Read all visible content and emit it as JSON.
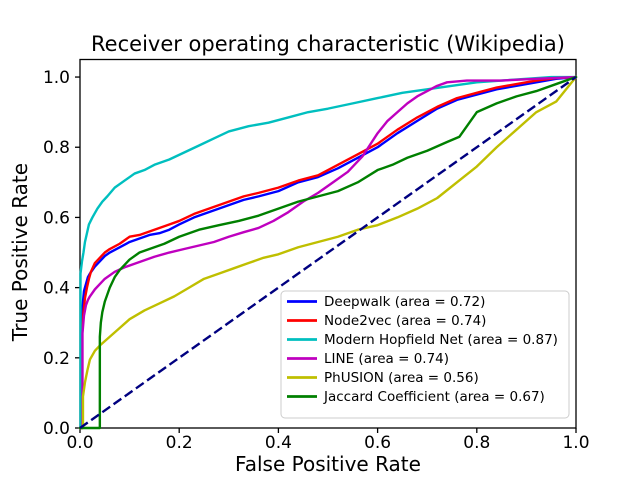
{
  "chart_data": {
    "type": "line",
    "title": "Receiver operating characteristic (Wikipedia)",
    "xlabel": "False Positive Rate",
    "ylabel": "True Positive Rate",
    "xlim": [
      0.0,
      1.0
    ],
    "ylim": [
      0.0,
      1.05
    ],
    "grid": false,
    "legend_position": "lower right",
    "x_ticks": {
      "values": [
        0.0,
        0.2,
        0.4,
        0.6,
        0.8,
        1.0
      ],
      "labels": [
        "0.0",
        "0.2",
        "0.4",
        "0.6",
        "0.8",
        "1.0"
      ]
    },
    "y_ticks": {
      "values": [
        0.0,
        0.2,
        0.4,
        0.6,
        0.8,
        1.0
      ],
      "labels": [
        "0.0",
        "0.2",
        "0.4",
        "0.6",
        "0.8",
        "1.0"
      ]
    },
    "series": [
      {
        "name": "deepwalk",
        "label": "Deepwalk (area = 0.72)",
        "auc": 0.72,
        "color": "#0000ff",
        "x": [
          0,
          0.003,
          0.003,
          0.006,
          0.008,
          0.012,
          0.016,
          0.02,
          0.03,
          0.04,
          0.05,
          0.06,
          0.08,
          0.1,
          0.12,
          0.14,
          0.16,
          0.18,
          0.2,
          0.23,
          0.26,
          0.3,
          0.33,
          0.36,
          0.4,
          0.44,
          0.48,
          0.52,
          0.56,
          0.6,
          0.64,
          0.68,
          0.72,
          0.76,
          0.8,
          0.84,
          0.88,
          0.92,
          0.96,
          1
        ],
        "y": [
          0,
          0,
          0.3,
          0.36,
          0.39,
          0.41,
          0.43,
          0.44,
          0.46,
          0.475,
          0.49,
          0.5,
          0.515,
          0.53,
          0.54,
          0.55,
          0.555,
          0.565,
          0.58,
          0.6,
          0.615,
          0.635,
          0.65,
          0.66,
          0.675,
          0.7,
          0.715,
          0.74,
          0.77,
          0.8,
          0.84,
          0.875,
          0.91,
          0.935,
          0.95,
          0.965,
          0.975,
          0.985,
          0.995,
          1
        ]
      },
      {
        "name": "node2vec",
        "label": "Node2vec (area = 0.74)",
        "auc": 0.74,
        "color": "#ff0000",
        "x": [
          0,
          0.004,
          0.004,
          0.007,
          0.01,
          0.014,
          0.018,
          0.022,
          0.03,
          0.04,
          0.05,
          0.06,
          0.08,
          0.1,
          0.12,
          0.14,
          0.16,
          0.18,
          0.2,
          0.23,
          0.26,
          0.3,
          0.33,
          0.36,
          0.4,
          0.44,
          0.48,
          0.52,
          0.56,
          0.6,
          0.64,
          0.68,
          0.72,
          0.76,
          0.8,
          0.84,
          0.88,
          0.92,
          0.96,
          1
        ],
        "y": [
          0,
          0,
          0.26,
          0.33,
          0.37,
          0.4,
          0.425,
          0.445,
          0.47,
          0.485,
          0.5,
          0.51,
          0.525,
          0.545,
          0.55,
          0.56,
          0.57,
          0.58,
          0.59,
          0.61,
          0.625,
          0.645,
          0.66,
          0.67,
          0.685,
          0.705,
          0.72,
          0.75,
          0.78,
          0.81,
          0.85,
          0.885,
          0.915,
          0.94,
          0.955,
          0.97,
          0.98,
          0.99,
          0.997,
          1
        ]
      },
      {
        "name": "modern-hopfield-net",
        "label": "Modern Hopfield Net (area = 0.87)",
        "auc": 0.87,
        "color": "#00bfbf",
        "x": [
          0,
          0.001,
          0.001,
          0.004,
          0.007,
          0.01,
          0.014,
          0.018,
          0.025,
          0.035,
          0.045,
          0.055,
          0.07,
          0.09,
          0.11,
          0.13,
          0.15,
          0.18,
          0.21,
          0.24,
          0.27,
          0.3,
          0.34,
          0.38,
          0.42,
          0.46,
          0.5,
          0.55,
          0.6,
          0.65,
          0.7,
          0.75,
          0.8,
          0.85,
          0.9,
          0.95,
          1
        ],
        "y": [
          0,
          0,
          0.44,
          0.475,
          0.5,
          0.53,
          0.555,
          0.58,
          0.6,
          0.625,
          0.645,
          0.66,
          0.685,
          0.705,
          0.725,
          0.735,
          0.75,
          0.765,
          0.785,
          0.805,
          0.825,
          0.845,
          0.86,
          0.87,
          0.885,
          0.9,
          0.91,
          0.925,
          0.94,
          0.955,
          0.965,
          0.975,
          0.985,
          0.99,
          0.995,
          1,
          1
        ]
      },
      {
        "name": "line",
        "label": "LINE (area = 0.74)",
        "auc": 0.74,
        "color": "#bf00bf",
        "x": [
          0,
          0.005,
          0.005,
          0.008,
          0.012,
          0.016,
          0.02,
          0.03,
          0.04,
          0.05,
          0.07,
          0.09,
          0.11,
          0.13,
          0.15,
          0.18,
          0.21,
          0.24,
          0.27,
          0.3,
          0.33,
          0.36,
          0.39,
          0.42,
          0.45,
          0.48,
          0.51,
          0.54,
          0.57,
          0.6,
          0.62,
          0.64,
          0.66,
          0.68,
          0.7,
          0.72,
          0.74,
          0.78,
          0.85,
          0.92,
          1
        ],
        "y": [
          0,
          0,
          0.27,
          0.32,
          0.35,
          0.365,
          0.375,
          0.395,
          0.41,
          0.425,
          0.445,
          0.458,
          0.468,
          0.478,
          0.488,
          0.5,
          0.51,
          0.52,
          0.53,
          0.545,
          0.558,
          0.57,
          0.59,
          0.615,
          0.645,
          0.67,
          0.7,
          0.73,
          0.775,
          0.84,
          0.875,
          0.9,
          0.925,
          0.945,
          0.96,
          0.975,
          0.985,
          0.99,
          0.99,
          0.995,
          1
        ]
      },
      {
        "name": "phusion",
        "label": "PhUSION (area = 0.56)",
        "auc": 0.56,
        "color": "#bfbf00",
        "x": [
          0,
          0.006,
          0.006,
          0.01,
          0.015,
          0.02,
          0.03,
          0.04,
          0.06,
          0.08,
          0.1,
          0.13,
          0.16,
          0.19,
          0.22,
          0.25,
          0.28,
          0.31,
          0.34,
          0.37,
          0.4,
          0.44,
          0.48,
          0.52,
          0.56,
          0.6,
          0.64,
          0.68,
          0.72,
          0.76,
          0.8,
          0.84,
          0.88,
          0.92,
          0.96,
          1
        ],
        "y": [
          0,
          0,
          0.09,
          0.13,
          0.165,
          0.195,
          0.22,
          0.235,
          0.26,
          0.285,
          0.31,
          0.335,
          0.355,
          0.375,
          0.4,
          0.425,
          0.44,
          0.455,
          0.47,
          0.485,
          0.495,
          0.515,
          0.53,
          0.545,
          0.565,
          0.578,
          0.6,
          0.625,
          0.655,
          0.7,
          0.745,
          0.8,
          0.85,
          0.9,
          0.93,
          1
        ]
      },
      {
        "name": "jaccard-coefficient",
        "label": "Jaccard Coefficient (area = 0.67)",
        "auc": 0.67,
        "color": "#008000",
        "x": [
          0,
          0.04,
          0.04,
          0.042,
          0.045,
          0.05,
          0.055,
          0.06,
          0.07,
          0.08,
          0.09,
          0.1,
          0.12,
          0.14,
          0.17,
          0.2,
          0.24,
          0.28,
          0.32,
          0.36,
          0.4,
          0.44,
          0.48,
          0.52,
          0.56,
          0.6,
          0.63,
          0.66,
          0.7,
          0.74,
          0.765,
          0.78,
          0.8,
          0.84,
          0.88,
          0.92,
          0.96,
          1
        ],
        "y": [
          0,
          0,
          0.26,
          0.3,
          0.33,
          0.36,
          0.38,
          0.4,
          0.43,
          0.45,
          0.465,
          0.48,
          0.5,
          0.51,
          0.525,
          0.545,
          0.565,
          0.578,
          0.59,
          0.605,
          0.625,
          0.645,
          0.66,
          0.675,
          0.7,
          0.735,
          0.75,
          0.77,
          0.79,
          0.815,
          0.83,
          0.86,
          0.9,
          0.925,
          0.945,
          0.96,
          0.98,
          1
        ]
      }
    ],
    "reference_line": {
      "name": "chance-diagonal",
      "color": "#000080",
      "line_style": "dashed",
      "x": [
        0,
        1
      ],
      "y": [
        0,
        1
      ]
    }
  }
}
